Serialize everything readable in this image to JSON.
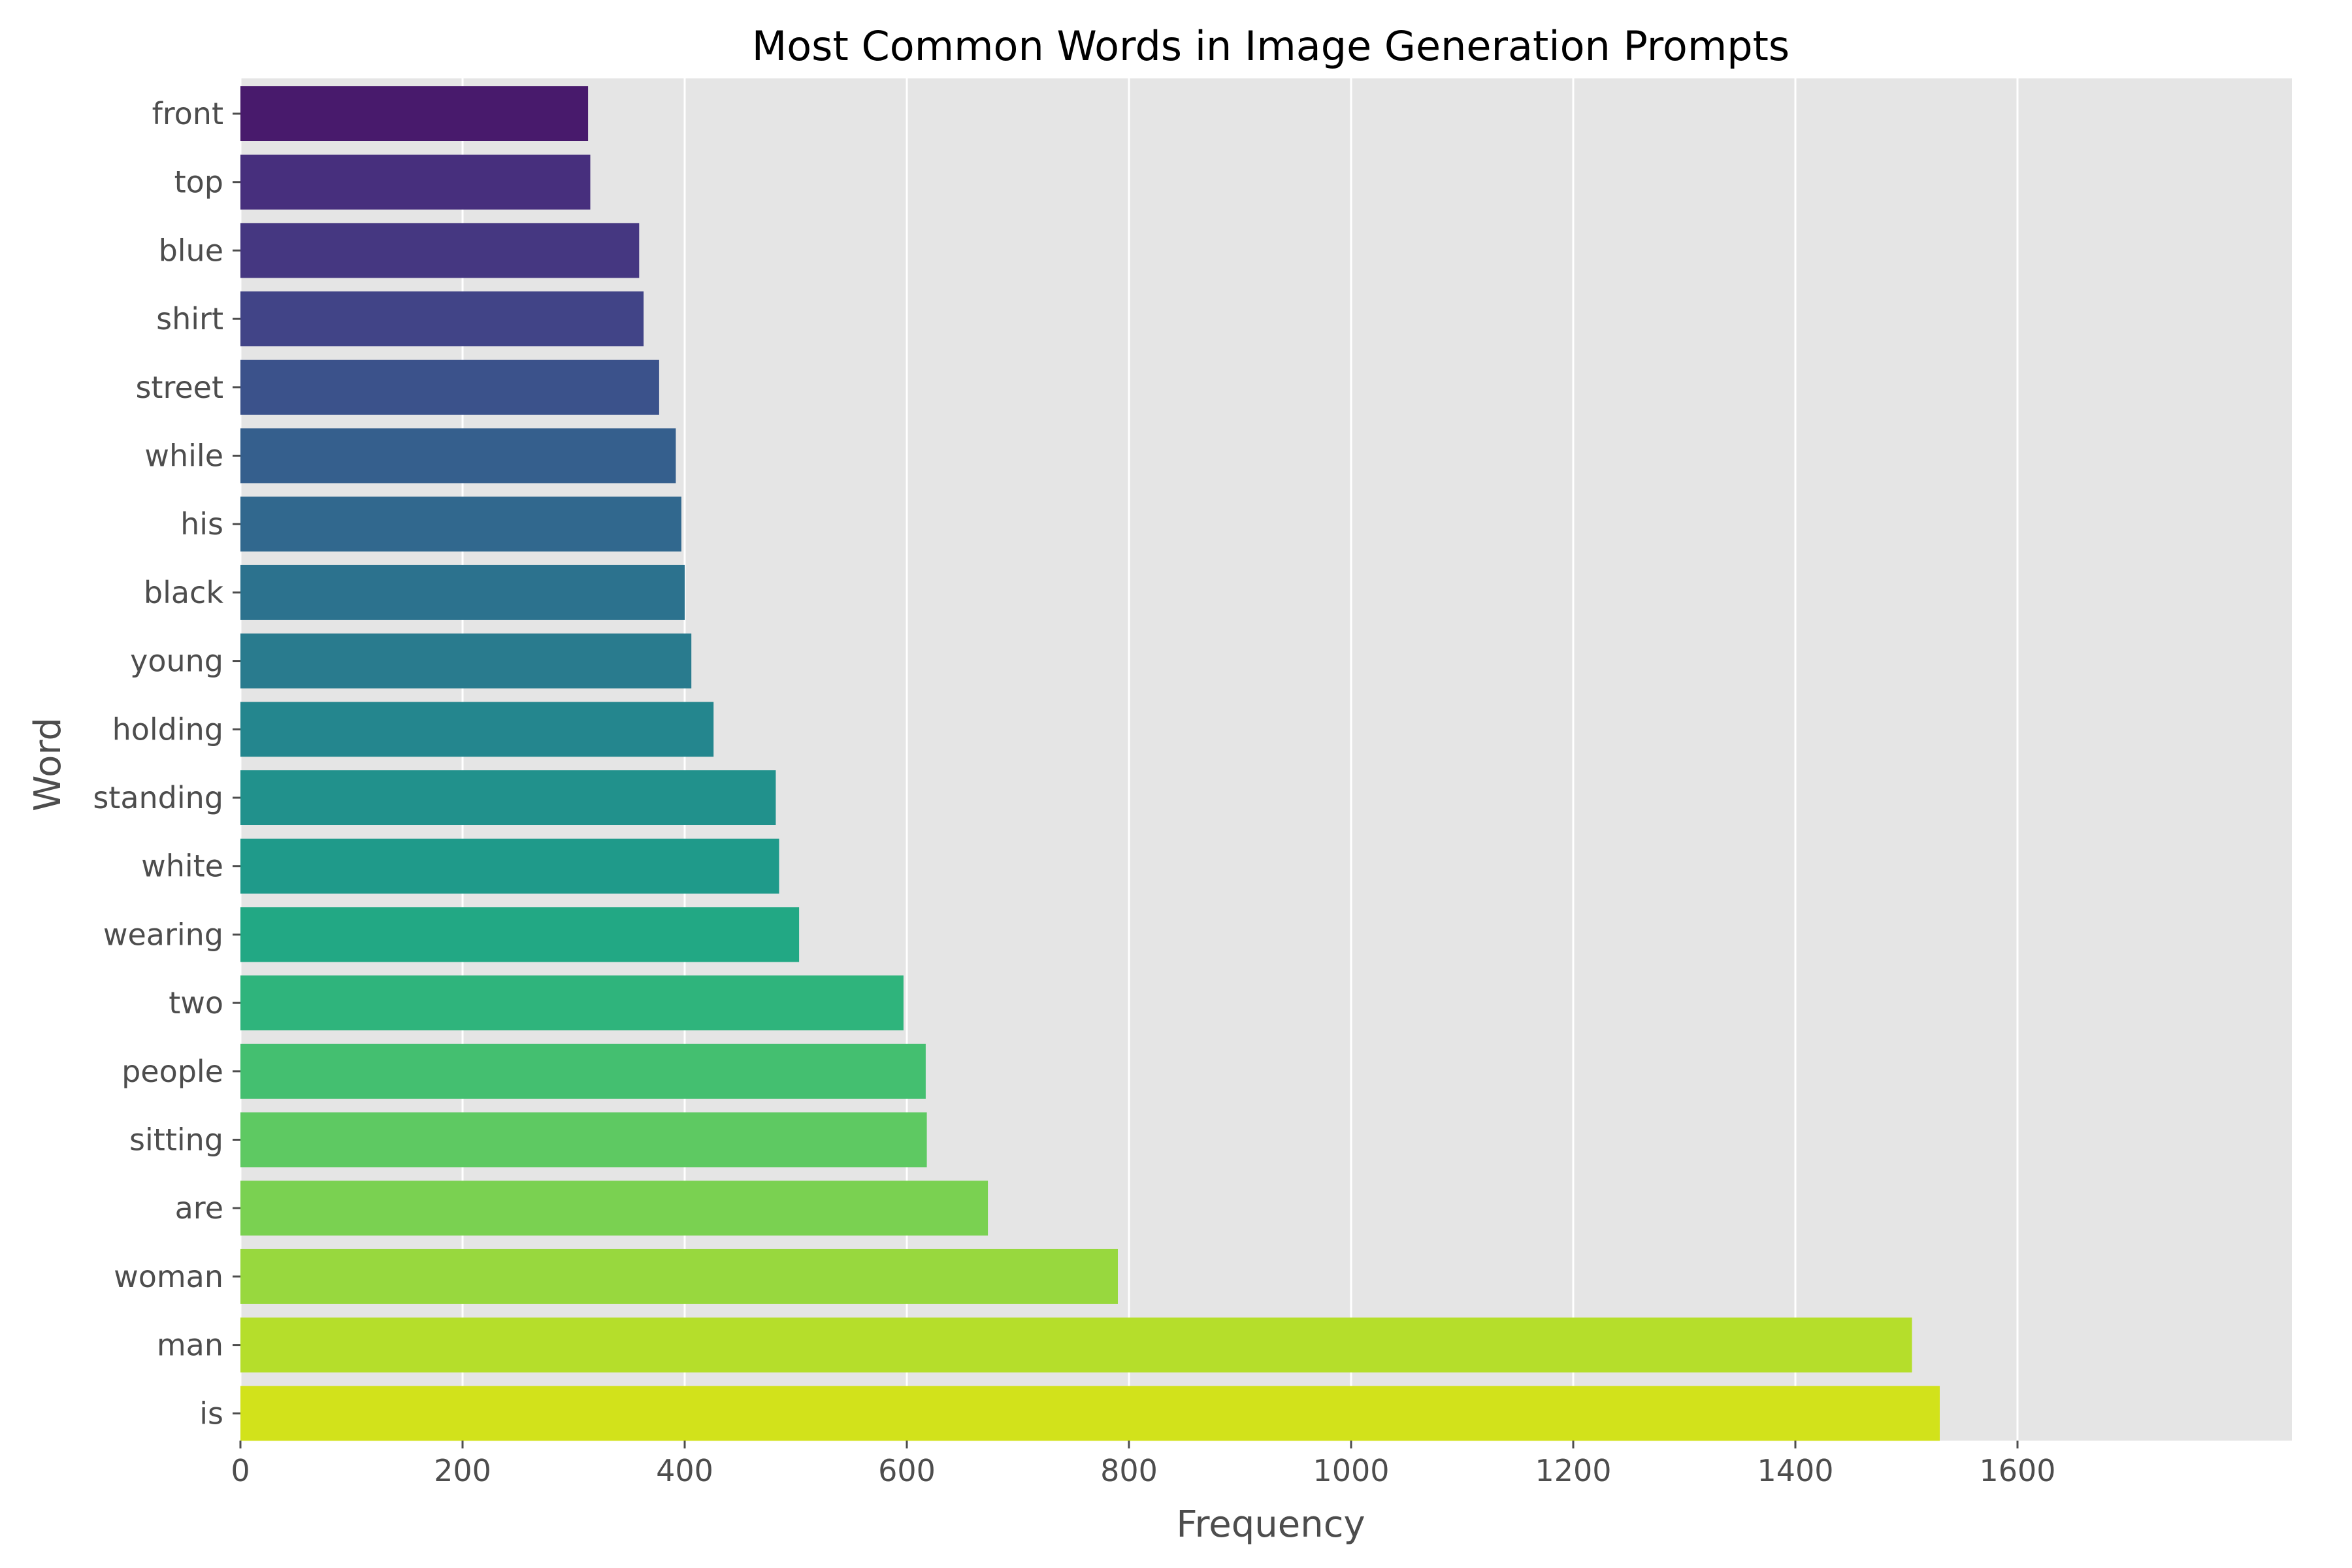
{
  "chart_data": {
    "type": "bar",
    "orientation": "horizontal",
    "title": "Most Common Words in Image Generation Prompts",
    "xlabel": "Frequency",
    "ylabel": "Word",
    "xlim": [
      0,
      1600
    ],
    "xticks": [
      0,
      200,
      400,
      600,
      800,
      1000,
      1200,
      1400,
      1600
    ],
    "grid": true,
    "categories": [
      "front",
      "top",
      "blue",
      "shirt",
      "street",
      "while",
      "his",
      "black",
      "young",
      "holding",
      "standing",
      "white",
      "wearing",
      "two",
      "people",
      "sitting",
      "are",
      "woman",
      "man",
      "is"
    ],
    "values": [
      313,
      315,
      359,
      363,
      377,
      392,
      397,
      400,
      406,
      426,
      482,
      485,
      503,
      597,
      617,
      618,
      673,
      790,
      1505,
      1530
    ],
    "colors": [
      "#481a6c",
      "#472f7d",
      "#453781",
      "#414487",
      "#3b528b",
      "#355f8d",
      "#31688e",
      "#2c728e",
      "#297b8e",
      "#24868e",
      "#21918c",
      "#1f9a8a",
      "#22a884",
      "#2fb47c",
      "#44bf70",
      "#5ec962",
      "#7ad151",
      "#98d83e",
      "#b5de2b",
      "#d2e21b"
    ]
  }
}
